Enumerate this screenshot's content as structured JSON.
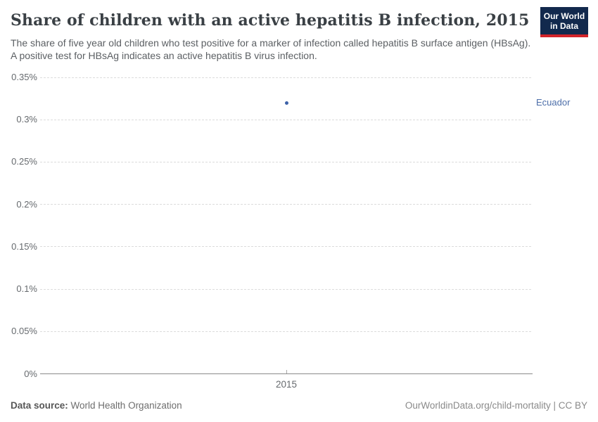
{
  "header": {
    "title": "Share of children with an active hepatitis B infection, 2015",
    "subtitle": "The share of five year old children who test positive for a marker of infection called hepatitis B surface antigen (HBsAg). A positive test for HBsAg indicates an active hepatitis B virus infection.",
    "logo": {
      "line1": "Our World",
      "line2": "in Data"
    }
  },
  "colors": {
    "point_blue": "#3d62a8",
    "entity_label_blue": "#4c6ea9",
    "logo_navy": "#12294d",
    "logo_red": "#d2232a",
    "gridline": "#dcdcdc",
    "axis": "#8b8b8b"
  },
  "chart_data": {
    "type": "scatter",
    "title": "Share of children with an active hepatitis B infection, 2015",
    "x": [
      2015
    ],
    "series": [
      {
        "name": "Ecuador",
        "values": [
          0.32
        ],
        "color": "#3d62a8"
      }
    ],
    "xlabel": "",
    "ylabel": "",
    "ylim": [
      0,
      0.35
    ],
    "yticks": [
      0,
      0.05,
      0.1,
      0.15,
      0.2,
      0.25,
      0.3,
      0.35
    ],
    "ytick_labels": [
      "0%",
      "0.05%",
      "0.1%",
      "0.15%",
      "0.2%",
      "0.25%",
      "0.3%",
      "0.35%"
    ],
    "xtick_labels": [
      "2015"
    ],
    "grid": "horizontal-dashed",
    "legend_position": "point-label-right",
    "point_label": "Ecuador"
  },
  "footer": {
    "data_source_label": "Data source:",
    "data_source_value": " World Health Organization",
    "credit": "OurWorldinData.org/child-mortality | CC BY"
  }
}
